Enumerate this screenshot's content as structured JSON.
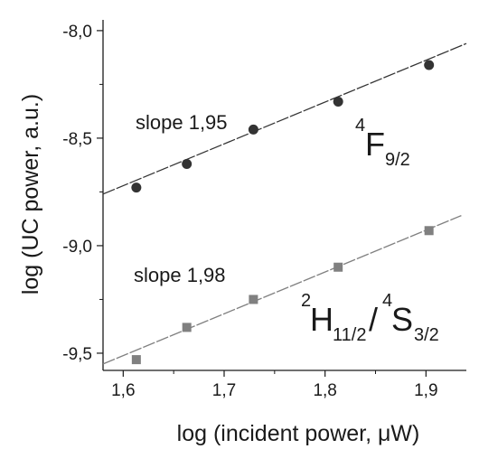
{
  "chart_data": {
    "type": "scatter",
    "xlabel": "log (incident power, μW)",
    "ylabel": "log (UC power, a.u.)",
    "xlim": [
      1.58,
      1.94
    ],
    "ylim": [
      -9.58,
      -7.95
    ],
    "x_ticks": [
      {
        "value": 1.6,
        "label": "1,6"
      },
      {
        "value": 1.7,
        "label": "1,7"
      },
      {
        "value": 1.8,
        "label": "1,8"
      },
      {
        "value": 1.9,
        "label": "1,9"
      }
    ],
    "y_ticks": [
      {
        "value": -8.0,
        "label": "-8,0"
      },
      {
        "value": -8.5,
        "label": "-8,5"
      },
      {
        "value": -9.0,
        "label": "-9,0"
      },
      {
        "value": -9.5,
        "label": "-9,5"
      }
    ],
    "grid": false,
    "series": [
      {
        "marker": "circle",
        "color": "#333333",
        "x": [
          1.613,
          1.663,
          1.729,
          1.813,
          1.903
        ],
        "y": [
          -8.73,
          -8.62,
          -8.46,
          -8.33,
          -8.16
        ],
        "fit_line": {
          "x": [
            1.58,
            1.94
          ],
          "y": [
            -8.76,
            -8.06
          ],
          "color": "#333333"
        },
        "slope_label": "slope 1,95",
        "label_sup": "4",
        "label_main": "F",
        "label_sub": "9/2"
      },
      {
        "marker": "square",
        "color": "#808080",
        "x": [
          1.613,
          1.663,
          1.729,
          1.813,
          1.903
        ],
        "y": [
          -9.53,
          -9.38,
          -9.25,
          -9.1,
          -8.93
        ],
        "fit_line": {
          "x": [
            1.58,
            1.935
          ],
          "y": [
            -9.55,
            -8.86
          ],
          "color": "#808080"
        },
        "slope_label": "slope 1,98",
        "label_parts": [
          {
            "sup": "2",
            "main": "H",
            "sub": "11/2"
          },
          {
            "sep": "/"
          },
          {
            "sup": "4",
            "main": "S",
            "sub": "3/2"
          }
        ]
      }
    ]
  }
}
